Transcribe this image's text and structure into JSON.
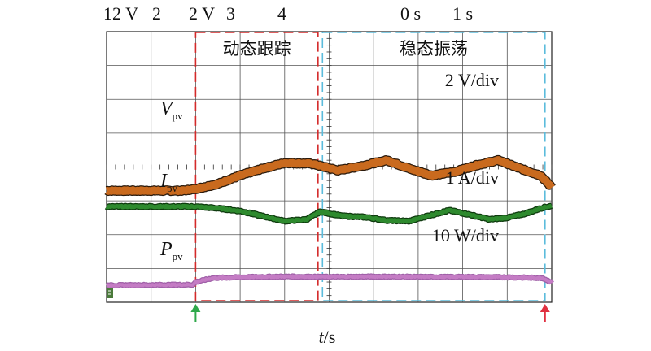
{
  "chart_data": {
    "type": "line",
    "title": "",
    "top_labels": [
      "12 V",
      "2",
      "2 V",
      "3",
      "4",
      "0 s",
      "1 s"
    ],
    "xlabel": "t/s",
    "xlabel_var": "t",
    "xlabel_unit": "/s",
    "regions": [
      {
        "name": "动态跟踪",
        "start_div": 2.0,
        "end_div": 4.75,
        "color": "#d42a2a"
      },
      {
        "name": "稳态振荡",
        "start_div": 4.85,
        "end_div": 9.85,
        "color": "#5bbcdc"
      }
    ],
    "markers": [
      {
        "at_div": 2.0,
        "color": "#2ea84a"
      },
      {
        "at_div": 9.85,
        "color": "#e03040"
      }
    ],
    "grid": {
      "x_divisions": 10,
      "y_divisions": 8,
      "minor_ticks_per_div": 5
    },
    "series": [
      {
        "name": "V",
        "subscript": "pv",
        "scale_label": "2 V/div",
        "color": "#c96a1e",
        "edge_color": "#2a1a0c",
        "points": [
          [
            0.0,
            3.3
          ],
          [
            1.7,
            3.3
          ],
          [
            2.0,
            3.35
          ],
          [
            2.5,
            3.5
          ],
          [
            3.0,
            3.75
          ],
          [
            3.5,
            3.95
          ],
          [
            4.0,
            4.12
          ],
          [
            4.6,
            4.1
          ],
          [
            5.2,
            3.9
          ],
          [
            5.8,
            4.05
          ],
          [
            6.3,
            4.2
          ],
          [
            6.8,
            3.95
          ],
          [
            7.3,
            3.75
          ],
          [
            7.8,
            3.85
          ],
          [
            8.3,
            4.05
          ],
          [
            8.8,
            4.2
          ],
          [
            9.3,
            3.95
          ],
          [
            9.75,
            3.75
          ],
          [
            10.0,
            3.4
          ]
        ]
      },
      {
        "name": "I",
        "subscript": "pv",
        "scale_label": "1 A/div",
        "color": "#2e8a2e",
        "edge_color": "#0e3a0e",
        "points": [
          [
            0.0,
            2.83
          ],
          [
            2.0,
            2.83
          ],
          [
            2.5,
            2.78
          ],
          [
            3.0,
            2.7
          ],
          [
            3.5,
            2.55
          ],
          [
            4.0,
            2.4
          ],
          [
            4.5,
            2.45
          ],
          [
            4.8,
            2.68
          ],
          [
            5.3,
            2.55
          ],
          [
            5.8,
            2.52
          ],
          [
            6.3,
            2.42
          ],
          [
            6.8,
            2.4
          ],
          [
            7.2,
            2.55
          ],
          [
            7.7,
            2.72
          ],
          [
            8.2,
            2.58
          ],
          [
            8.6,
            2.45
          ],
          [
            9.0,
            2.5
          ],
          [
            9.4,
            2.62
          ],
          [
            9.8,
            2.8
          ],
          [
            10.0,
            2.85
          ]
        ]
      },
      {
        "name": "P",
        "subscript": "pv",
        "scale_label": "10 W/div",
        "color": "#c47cc4",
        "edge_color": "#a060a8",
        "points": [
          [
            0.0,
            0.5
          ],
          [
            1.95,
            0.52
          ],
          [
            2.0,
            0.6
          ],
          [
            2.4,
            0.72
          ],
          [
            3.0,
            0.74
          ],
          [
            4.0,
            0.76
          ],
          [
            5.0,
            0.75
          ],
          [
            6.0,
            0.76
          ],
          [
            7.0,
            0.75
          ],
          [
            8.0,
            0.75
          ],
          [
            9.0,
            0.74
          ],
          [
            9.8,
            0.72
          ],
          [
            10.0,
            0.58
          ]
        ]
      }
    ]
  }
}
